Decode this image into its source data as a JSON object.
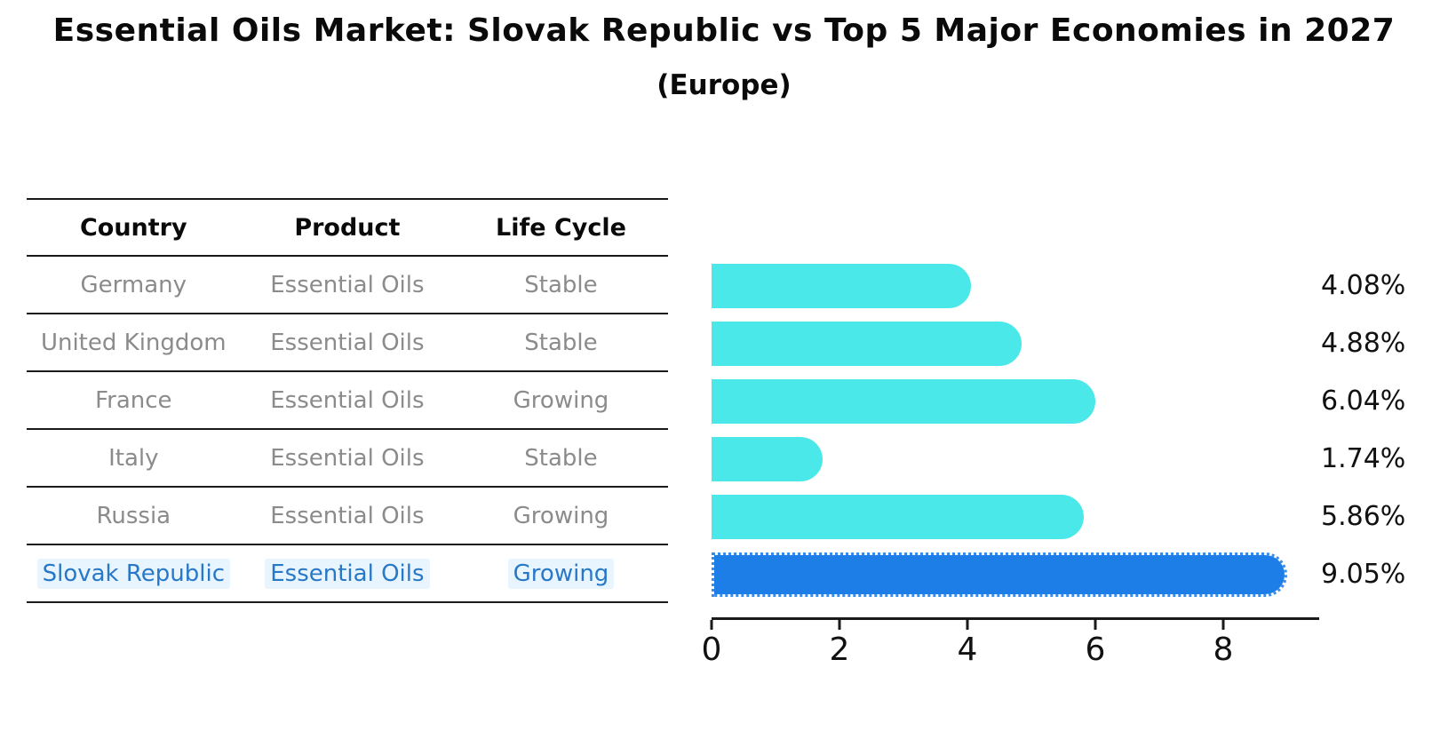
{
  "title": "Essential Oils Market: Slovak Republic vs Top 5 Major Economies in 2027",
  "subtitle": "(Europe)",
  "table": {
    "headers": [
      "Country",
      "Product",
      "Life Cycle"
    ],
    "rows": [
      {
        "country": "Germany",
        "product": "Essential Oils",
        "life_cycle": "Stable",
        "value_label": "4.08%",
        "highlight": false
      },
      {
        "country": "United Kingdom",
        "product": "Essential Oils",
        "life_cycle": "Stable",
        "value_label": "4.88%",
        "highlight": false
      },
      {
        "country": "France",
        "product": "Essential Oils",
        "life_cycle": "Growing",
        "value_label": "6.04%",
        "highlight": false
      },
      {
        "country": "Italy",
        "product": "Essential Oils",
        "life_cycle": "Stable",
        "value_label": "1.74%",
        "highlight": false
      },
      {
        "country": "Russia",
        "product": "Essential Oils",
        "life_cycle": "Growing",
        "value_label": "5.86%",
        "highlight": false
      },
      {
        "country": "Slovak Republic",
        "product": "Essential Oils",
        "life_cycle": "Growing",
        "value_label": "9.05%",
        "highlight": true
      }
    ]
  },
  "chart_data": {
    "type": "bar",
    "orientation": "horizontal",
    "categories": [
      "Germany",
      "United Kingdom",
      "France",
      "Italy",
      "Russia",
      "Slovak Republic"
    ],
    "values": [
      4.08,
      4.88,
      6.04,
      1.74,
      5.86,
      9.05
    ],
    "value_labels": [
      "4.08%",
      "4.88%",
      "6.04%",
      "1.74%",
      "5.86%",
      "9.05%"
    ],
    "title": "Essential Oils Market: Slovak Republic vs Top 5 Major Economies in 2027",
    "subtitle": "(Europe)",
    "xlabel": "",
    "ylabel": "",
    "xlim": [
      0,
      9.5
    ],
    "xticks": [
      0,
      2,
      4,
      6,
      8
    ],
    "xtick_labels": [
      "0",
      "2",
      "4",
      "6",
      "8"
    ],
    "grid": false,
    "legend": false,
    "bar_color": "#4ae8e8",
    "highlight_color": "#1e7ee8",
    "highlight_index": 5,
    "highlight_edge_style": "dotted",
    "text_color_normal": "#8b8b8b",
    "text_color_highlight": "#2878c8"
  }
}
